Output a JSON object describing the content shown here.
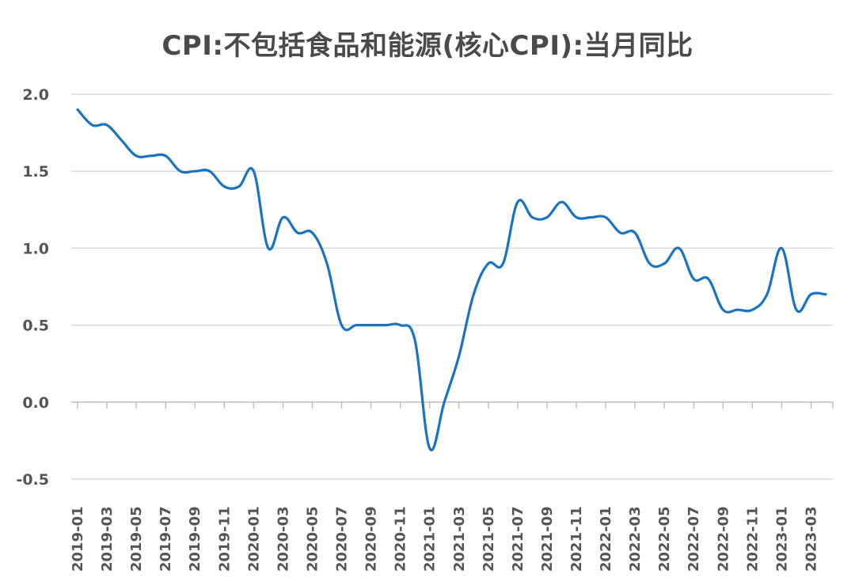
{
  "chart_data": {
    "type": "line",
    "title": "CPI:不包括食品和能源(核心CPI):当月同比",
    "xlabel": "",
    "ylabel": "",
    "ylim": [
      -0.5,
      2.0
    ],
    "yticks": [
      2.0,
      1.5,
      1.0,
      0.5,
      0.0,
      -0.5
    ],
    "ytick_labels": [
      "2.0",
      "1.5",
      "1.0",
      "0.5",
      "0.0",
      "-0.5"
    ],
    "grid": true,
    "legend": "none",
    "line_color": "#1a73c2",
    "x": [
      "2019-01",
      "2019-02",
      "2019-03",
      "2019-04",
      "2019-05",
      "2019-06",
      "2019-07",
      "2019-08",
      "2019-09",
      "2019-10",
      "2019-11",
      "2019-12",
      "2020-01",
      "2020-02",
      "2020-03",
      "2020-04",
      "2020-05",
      "2020-06",
      "2020-07",
      "2020-08",
      "2020-09",
      "2020-10",
      "2020-11",
      "2020-12",
      "2021-01",
      "2021-02",
      "2021-03",
      "2021-04",
      "2021-05",
      "2021-06",
      "2021-07",
      "2021-08",
      "2021-09",
      "2021-10",
      "2021-11",
      "2021-12",
      "2022-01",
      "2022-02",
      "2022-03",
      "2022-04",
      "2022-05",
      "2022-06",
      "2022-07",
      "2022-08",
      "2022-09",
      "2022-10",
      "2022-11",
      "2022-12",
      "2023-01",
      "2023-02",
      "2023-03",
      "2023-04"
    ],
    "xtick_labels": [
      "2019-01",
      "2019-03",
      "2019-05",
      "2019-07",
      "2019-09",
      "2019-11",
      "2020-01",
      "2020-03",
      "2020-05",
      "2020-07",
      "2020-09",
      "2020-11",
      "2021-01",
      "2021-03",
      "2021-05",
      "2021-07",
      "2021-09",
      "2021-11",
      "2022-01",
      "2022-03",
      "2022-05",
      "2022-07",
      "2022-09",
      "2022-11",
      "2023-01",
      "2023-03"
    ],
    "series": [
      {
        "values": [
          1.9,
          1.8,
          1.8,
          1.7,
          1.6,
          1.6,
          1.6,
          1.5,
          1.5,
          1.5,
          1.4,
          1.4,
          1.5,
          1.0,
          1.2,
          1.1,
          1.1,
          0.9,
          0.5,
          0.5,
          0.5,
          0.5,
          0.5,
          0.4,
          -0.3,
          0.0,
          0.3,
          0.7,
          0.9,
          0.9,
          1.3,
          1.2,
          1.2,
          1.3,
          1.2,
          1.2,
          1.2,
          1.1,
          1.1,
          0.9,
          0.9,
          1.0,
          0.8,
          0.8,
          0.6,
          0.6,
          0.6,
          0.7,
          1.0,
          0.6,
          0.7,
          0.7
        ]
      }
    ]
  }
}
